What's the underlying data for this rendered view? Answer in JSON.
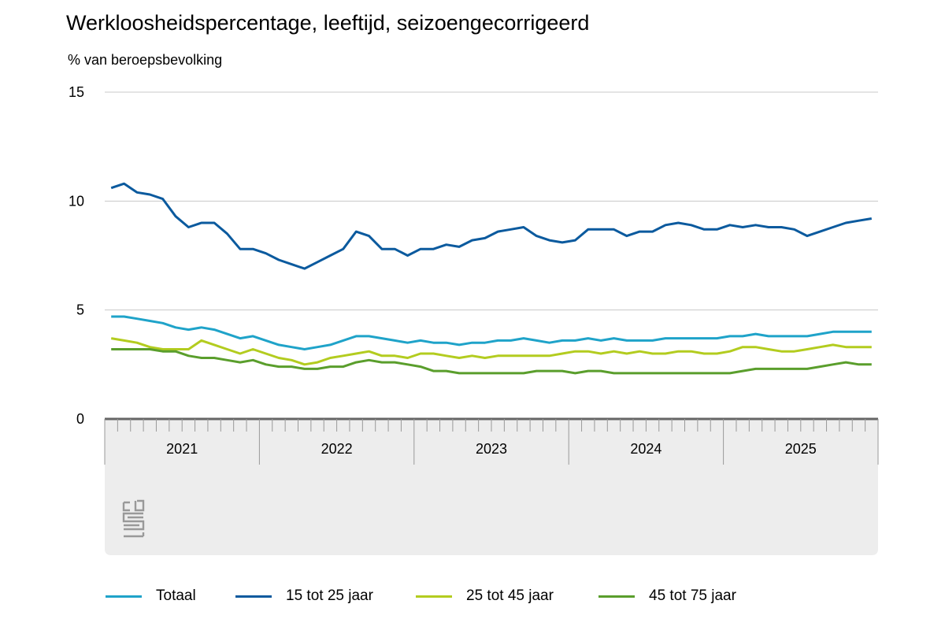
{
  "title": "Werkloosheidspercentage, leeftijd, seizoengecorrigeerd",
  "unit_label": "% van beroepsbevolking",
  "logo": "cbs",
  "chart_data": {
    "type": "line",
    "title": "Werkloosheidspercentage, leeftijd, seizoengecorrigeerd",
    "ylabel": "% van beroepsbevolking",
    "ylim": [
      0,
      15
    ],
    "yticks": [
      "0",
      "5",
      "10",
      "15"
    ],
    "grid": true,
    "legend": "bottom",
    "x_frequency": "monthly",
    "x_start": "2021-01",
    "x_end": "2025-12",
    "xtick_labels": [
      "2021",
      "2022",
      "2023",
      "2024",
      "2025"
    ],
    "series": [
      {
        "name": "Totaal",
        "color": "#1fa3c9",
        "values": [
          4.7,
          4.7,
          4.6,
          4.5,
          4.4,
          4.2,
          4.1,
          4.2,
          4.1,
          3.9,
          3.7,
          3.8,
          3.6,
          3.4,
          3.3,
          3.2,
          3.3,
          3.4,
          3.6,
          3.8,
          3.8,
          3.7,
          3.6,
          3.5,
          3.6,
          3.5,
          3.5,
          3.4,
          3.5,
          3.5,
          3.6,
          3.6,
          3.7,
          3.6,
          3.5,
          3.6,
          3.6,
          3.7,
          3.6,
          3.7,
          3.6,
          3.6,
          3.6,
          3.7,
          3.7,
          3.7,
          3.7,
          3.7,
          3.8,
          3.8,
          3.9,
          3.8,
          3.8,
          3.8,
          3.8,
          3.9,
          4.0,
          4.0,
          4.0,
          4.0
        ]
      },
      {
        "name": "15 tot 25 jaar",
        "color": "#0b5a9e",
        "values": [
          10.6,
          10.8,
          10.4,
          10.3,
          10.1,
          9.3,
          8.8,
          9.0,
          9.0,
          8.5,
          7.8,
          7.8,
          7.6,
          7.3,
          7.1,
          6.9,
          7.2,
          7.5,
          7.8,
          8.6,
          8.4,
          7.8,
          7.8,
          7.5,
          7.8,
          7.8,
          8.0,
          7.9,
          8.2,
          8.3,
          8.6,
          8.7,
          8.8,
          8.4,
          8.2,
          8.1,
          8.2,
          8.7,
          8.7,
          8.7,
          8.4,
          8.6,
          8.6,
          8.9,
          9.0,
          8.9,
          8.7,
          8.7,
          8.9,
          8.8,
          8.9,
          8.8,
          8.8,
          8.7,
          8.4,
          8.6,
          8.8,
          9.0,
          9.1,
          9.2
        ]
      },
      {
        "name": "25 tot 45 jaar",
        "color": "#b3cc1f",
        "values": [
          3.7,
          3.6,
          3.5,
          3.3,
          3.2,
          3.2,
          3.2,
          3.6,
          3.4,
          3.2,
          3.0,
          3.2,
          3.0,
          2.8,
          2.7,
          2.5,
          2.6,
          2.8,
          2.9,
          3.0,
          3.1,
          2.9,
          2.9,
          2.8,
          3.0,
          3.0,
          2.9,
          2.8,
          2.9,
          2.8,
          2.9,
          2.9,
          2.9,
          2.9,
          2.9,
          3.0,
          3.1,
          3.1,
          3.0,
          3.1,
          3.0,
          3.1,
          3.0,
          3.0,
          3.1,
          3.1,
          3.0,
          3.0,
          3.1,
          3.3,
          3.3,
          3.2,
          3.1,
          3.1,
          3.2,
          3.3,
          3.4,
          3.3,
          3.3,
          3.3
        ]
      },
      {
        "name": "45 tot 75 jaar",
        "color": "#5a9e2c",
        "values": [
          3.2,
          3.2,
          3.2,
          3.2,
          3.1,
          3.1,
          2.9,
          2.8,
          2.8,
          2.7,
          2.6,
          2.7,
          2.5,
          2.4,
          2.4,
          2.3,
          2.3,
          2.4,
          2.4,
          2.6,
          2.7,
          2.6,
          2.6,
          2.5,
          2.4,
          2.2,
          2.2,
          2.1,
          2.1,
          2.1,
          2.1,
          2.1,
          2.1,
          2.2,
          2.2,
          2.2,
          2.1,
          2.2,
          2.2,
          2.1,
          2.1,
          2.1,
          2.1,
          2.1,
          2.1,
          2.1,
          2.1,
          2.1,
          2.1,
          2.2,
          2.3,
          2.3,
          2.3,
          2.3,
          2.3,
          2.4,
          2.5,
          2.6,
          2.5,
          2.5
        ]
      }
    ]
  }
}
